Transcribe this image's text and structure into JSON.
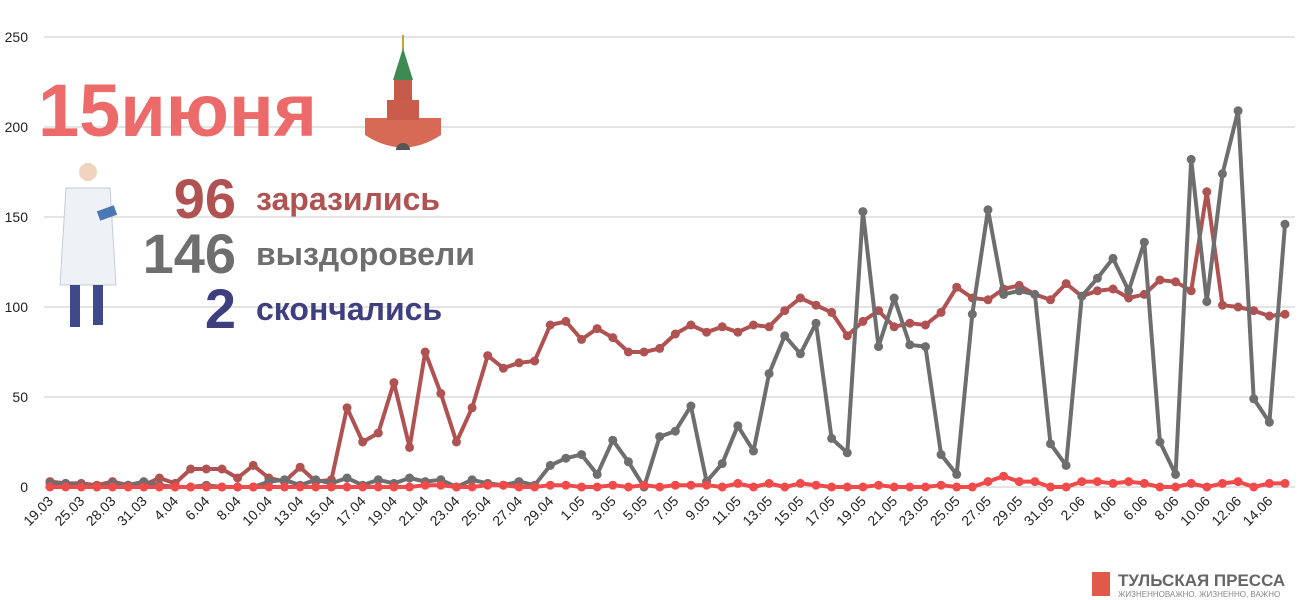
{
  "chart_data": {
    "type": "line",
    "title": "15июня",
    "categories": [
      "19.03",
      null,
      "25.03",
      null,
      "28.03",
      null,
      "31.03",
      null,
      "4.04",
      null,
      "6.04",
      null,
      "8.04",
      null,
      "10.04",
      null,
      "13.04",
      null,
      "15.04",
      null,
      "17.04",
      null,
      "19.04",
      null,
      "21.04",
      null,
      "23.04",
      null,
      "25.04",
      null,
      "27.04",
      null,
      "29.04",
      null,
      "1.05",
      null,
      "3.05",
      null,
      "5.05",
      null,
      "7.05",
      null,
      "9.05",
      null,
      "11.05",
      null,
      "13.05",
      null,
      "15.05",
      null,
      "17.05",
      null,
      "19.05",
      null,
      "21.05",
      null,
      "23.05",
      null,
      "25.05",
      null,
      "27.05",
      null,
      "29.05",
      null,
      "31.05",
      null,
      "2.06",
      null,
      "4.06",
      null,
      "6.06",
      null,
      "8.06",
      null,
      "10.06",
      null,
      "12.06",
      null,
      "14.06",
      null
    ],
    "series": [
      {
        "name": "заразились",
        "color": "#b05252",
        "values": [
          3,
          2,
          2,
          1,
          3,
          1,
          1,
          5,
          2,
          10,
          10,
          10,
          5,
          12,
          5,
          3,
          11,
          3,
          4,
          44,
          25,
          30,
          58,
          22,
          75,
          52,
          25,
          44,
          73,
          66,
          69,
          70,
          90,
          92,
          82,
          88,
          83,
          75,
          75,
          77,
          85,
          90,
          86,
          89,
          86,
          90,
          89,
          98,
          105,
          101,
          97,
          84,
          92,
          98,
          89,
          91,
          90,
          97,
          111,
          105,
          104,
          110,
          112,
          107,
          104,
          113,
          106,
          109,
          110,
          105,
          107,
          115,
          114,
          109,
          164,
          101,
          100,
          98,
          95,
          96
        ]
      },
      {
        "name": "выздоровели",
        "color": "#6e6e6e",
        "values": [
          2,
          2,
          1,
          0,
          2,
          1,
          3,
          1,
          0,
          0,
          1,
          0,
          0,
          0,
          3,
          4,
          1,
          4,
          2,
          5,
          1,
          4,
          2,
          5,
          3,
          4,
          0,
          4,
          2,
          1,
          3,
          1,
          12,
          16,
          18,
          7,
          26,
          14,
          0,
          28,
          31,
          45,
          3,
          13,
          34,
          20,
          63,
          84,
          74,
          91,
          27,
          19,
          153,
          78,
          105,
          79,
          78,
          18,
          7,
          96,
          154,
          107,
          109,
          107,
          24,
          12,
          106,
          116,
          127,
          109,
          136,
          25,
          7,
          182,
          103,
          174,
          209,
          49,
          36,
          146
        ]
      },
      {
        "name": "скончались",
        "color": "#f04a4a",
        "values": [
          0,
          0,
          0,
          0,
          0,
          0,
          0,
          0,
          0,
          0,
          0,
          0,
          0,
          0,
          0,
          0,
          0,
          0,
          0,
          0,
          0,
          0,
          0,
          0,
          1,
          1,
          0,
          0,
          1,
          1,
          0,
          0,
          1,
          1,
          0,
          0,
          1,
          0,
          1,
          0,
          1,
          1,
          1,
          0,
          2,
          0,
          2,
          0,
          2,
          1,
          0,
          0,
          0,
          1,
          0,
          0,
          0,
          1,
          0,
          0,
          3,
          6,
          3,
          3,
          0,
          0,
          3,
          3,
          2,
          3,
          2,
          0,
          0,
          2,
          0,
          2,
          3,
          0,
          2,
          2
        ]
      }
    ],
    "headline": [
      {
        "value": 96,
        "label": "заразились",
        "color": "#b05252"
      },
      {
        "value": 146,
        "label": "выздоровели",
        "color": "#6e6e6e"
      },
      {
        "value": 2,
        "label": "скончались",
        "color": "#3f3f80"
      }
    ],
    "ylim": [
      0,
      250
    ],
    "yticks": [
      0,
      50,
      100,
      150,
      200,
      250
    ],
    "grid": true,
    "logo": {
      "name": "ТУЛЬСКАЯ ПРЕССА",
      "slogan": "ЖИЗНЕННОВАЖНО. ЖИЗНЕННО, ВАЖНО"
    }
  }
}
